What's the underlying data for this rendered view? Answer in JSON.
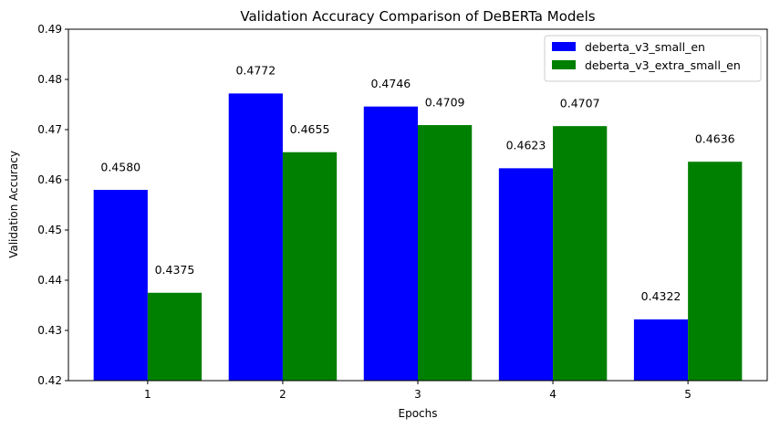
{
  "chart_data": {
    "type": "bar",
    "title": "Validation Accuracy Comparison of DeBERTa Models",
    "xlabel": "Epochs",
    "ylabel": "Validation Accuracy",
    "categories": [
      "1",
      "2",
      "3",
      "4",
      "5"
    ],
    "ylim": [
      0.42,
      0.49
    ],
    "yticks": [
      "0.42",
      "0.43",
      "0.44",
      "0.45",
      "0.46",
      "0.47",
      "0.48",
      "0.49"
    ],
    "grid": false,
    "legend_position": "top-right",
    "series": [
      {
        "name": "deberta_v3_small_en",
        "color": "#0000ff",
        "values": [
          0.458,
          0.4772,
          0.4746,
          0.4623,
          0.4322
        ],
        "labels": [
          "0.4580",
          "0.4772",
          "0.4746",
          "0.4623",
          "0.4322"
        ]
      },
      {
        "name": "deberta_v3_extra_small_en",
        "color": "#008000",
        "values": [
          0.4375,
          0.4655,
          0.4709,
          0.4707,
          0.4636
        ],
        "labels": [
          "0.4375",
          "0.4655",
          "0.4709",
          "0.4707",
          "0.4636"
        ]
      }
    ]
  }
}
